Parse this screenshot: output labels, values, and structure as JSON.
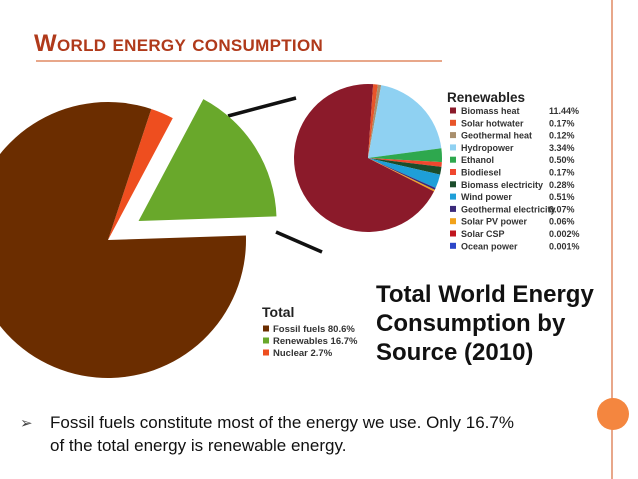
{
  "slide": {
    "title": "World energy consumption",
    "bullet": "Fossil fuels constitute most of the energy we use. Only 16.7%  of the total energy is renewable energy.",
    "colors": {
      "accent": "#f4863f",
      "rule": "#e8a78a",
      "title": "#b03a1b"
    }
  },
  "chart_data": [
    {
      "type": "pie",
      "title": "Total World Energy Consumption by Source (2010)",
      "legend_title": "Total",
      "legend_placement": "bottom-right",
      "slices": [
        {
          "name": "Fossil fuels",
          "value": 80.6,
          "label": "80.6%",
          "color": "#6b2d00"
        },
        {
          "name": "Renewables",
          "value": 16.7,
          "label": "16.7%",
          "color": "#69a82b"
        },
        {
          "name": "Nuclear",
          "value": 2.7,
          "label": "2.7%",
          "color": "#ee4e1f"
        }
      ]
    },
    {
      "type": "pie",
      "title": "Renewables",
      "legend_placement": "right",
      "slices": [
        {
          "name": "Biomass heat",
          "value": 11.44,
          "label": "11.44%",
          "color": "#8b1a2a"
        },
        {
          "name": "Solar hotwater",
          "value": 0.17,
          "label": "0.17%",
          "color": "#e8552a"
        },
        {
          "name": "Geothermal heat",
          "value": 0.12,
          "label": "0.12%",
          "color": "#a98f6d"
        },
        {
          "name": "Hydropower",
          "value": 3.34,
          "label": "3.34%",
          "color": "#8fd1f2"
        },
        {
          "name": "Ethanol",
          "value": 0.5,
          "label": "0.50%",
          "color": "#2ea84e"
        },
        {
          "name": "Biodiesel",
          "value": 0.17,
          "label": "0.17%",
          "color": "#f0472e"
        },
        {
          "name": "Biomass electricity",
          "value": 0.28,
          "label": "0.28%",
          "color": "#1b4d2b"
        },
        {
          "name": "Wind power",
          "value": 0.51,
          "label": "0.51%",
          "color": "#1e9fd8"
        },
        {
          "name": "Geothermal electricity",
          "value": 0.07,
          "label": "0.07%",
          "color": "#3b2a7a"
        },
        {
          "name": "Solar PV power",
          "value": 0.06,
          "label": "0.06%",
          "color": "#f2a21a"
        },
        {
          "name": "Solar CSP",
          "value": 0.002,
          "label": "0.002%",
          "color": "#c0161e"
        },
        {
          "name": "Ocean power",
          "value": 0.001,
          "label": "0.001%",
          "color": "#2b46c8"
        }
      ]
    }
  ]
}
